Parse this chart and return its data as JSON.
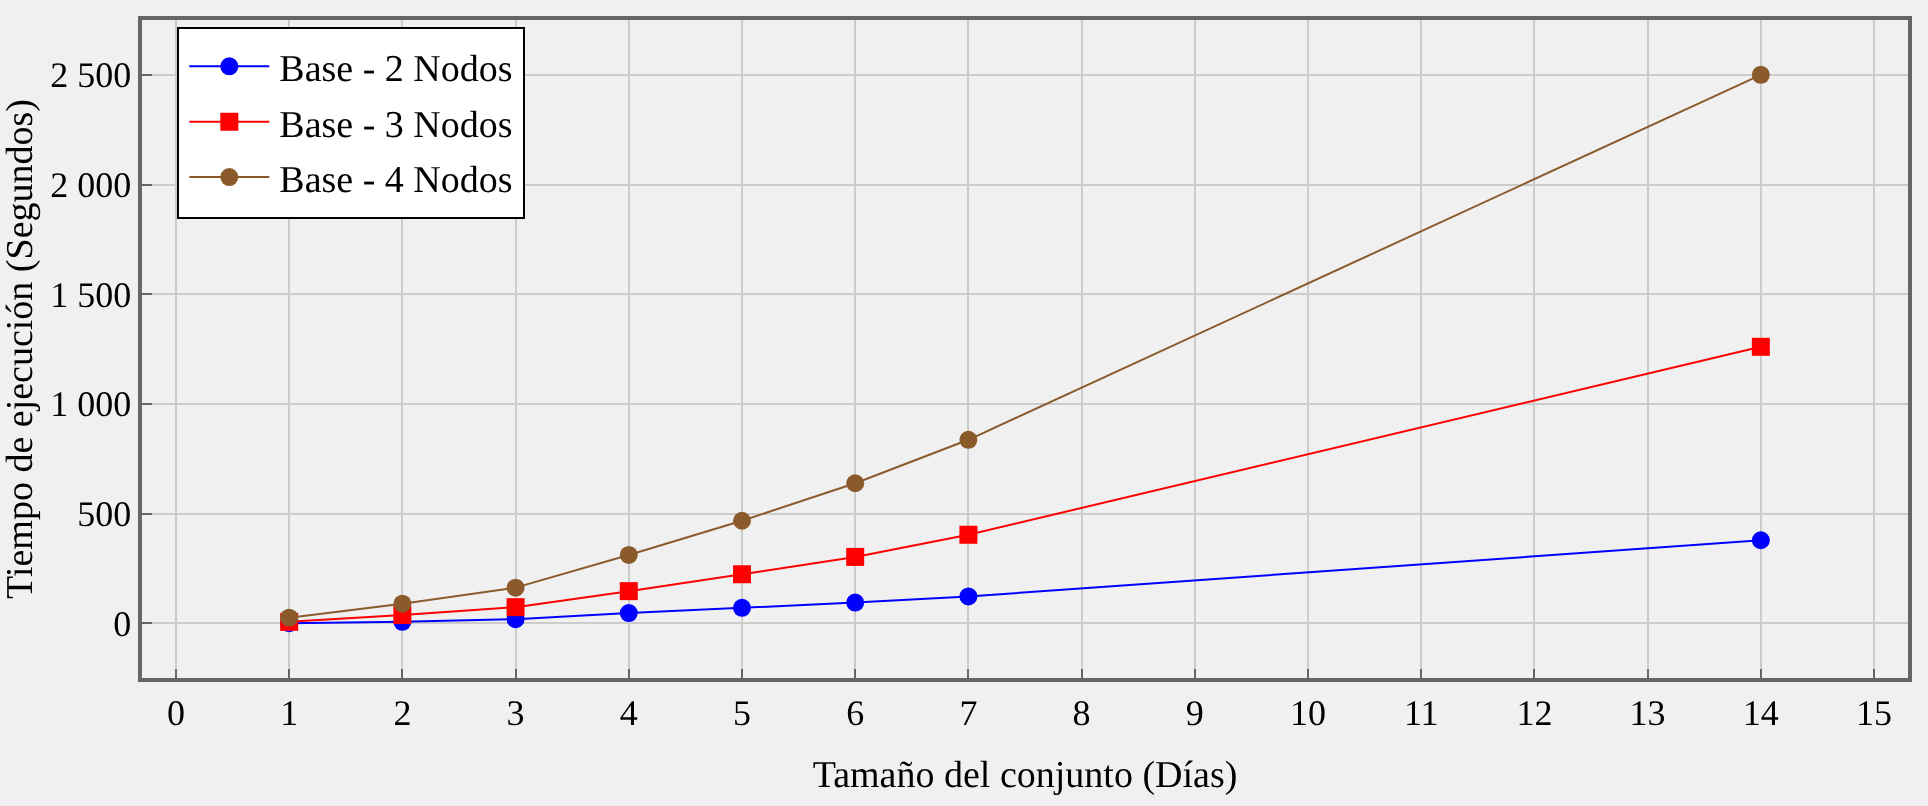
{
  "chart_data": {
    "type": "line",
    "xlabel": "Tamaño del conjunto (Días)",
    "ylabel": "Tiempo de ejecución (Segundos)",
    "x": [
      1,
      2,
      3,
      4,
      5,
      6,
      7,
      14
    ],
    "series": [
      {
        "name": "Base - 2 Nodos",
        "color": "#0000ff",
        "marker": "circle",
        "values": [
          0,
          6,
          18,
          46,
          70,
          94,
          122,
          378
        ]
      },
      {
        "name": "Base - 3 Nodos",
        "color": "#ff0000",
        "marker": "square",
        "values": [
          6,
          37,
          73,
          146,
          223,
          302,
          403,
          1260
        ]
      },
      {
        "name": "Base - 4 Nodos",
        "color": "#8b5a2b",
        "marker": "circle",
        "values": [
          25,
          89,
          162,
          311,
          467,
          638,
          836,
          2500
        ]
      }
    ],
    "xlim": [
      -0.3,
      15.3
    ],
    "xticks": [
      0,
      1,
      2,
      3,
      4,
      5,
      6,
      7,
      8,
      9,
      10,
      11,
      12,
      13,
      14,
      15
    ],
    "ylim": [
      -250,
      2750
    ],
    "yticks": [
      0,
      500,
      {
        "value": 1000,
        "label": "1 000"
      },
      {
        "value": 1500,
        "label": "1 500"
      },
      {
        "value": 2000,
        "label": "2 000"
      },
      {
        "value": 2500,
        "label": "2 500"
      }
    ],
    "grid": true,
    "legend": "top left",
    "line_style": "solid"
  }
}
